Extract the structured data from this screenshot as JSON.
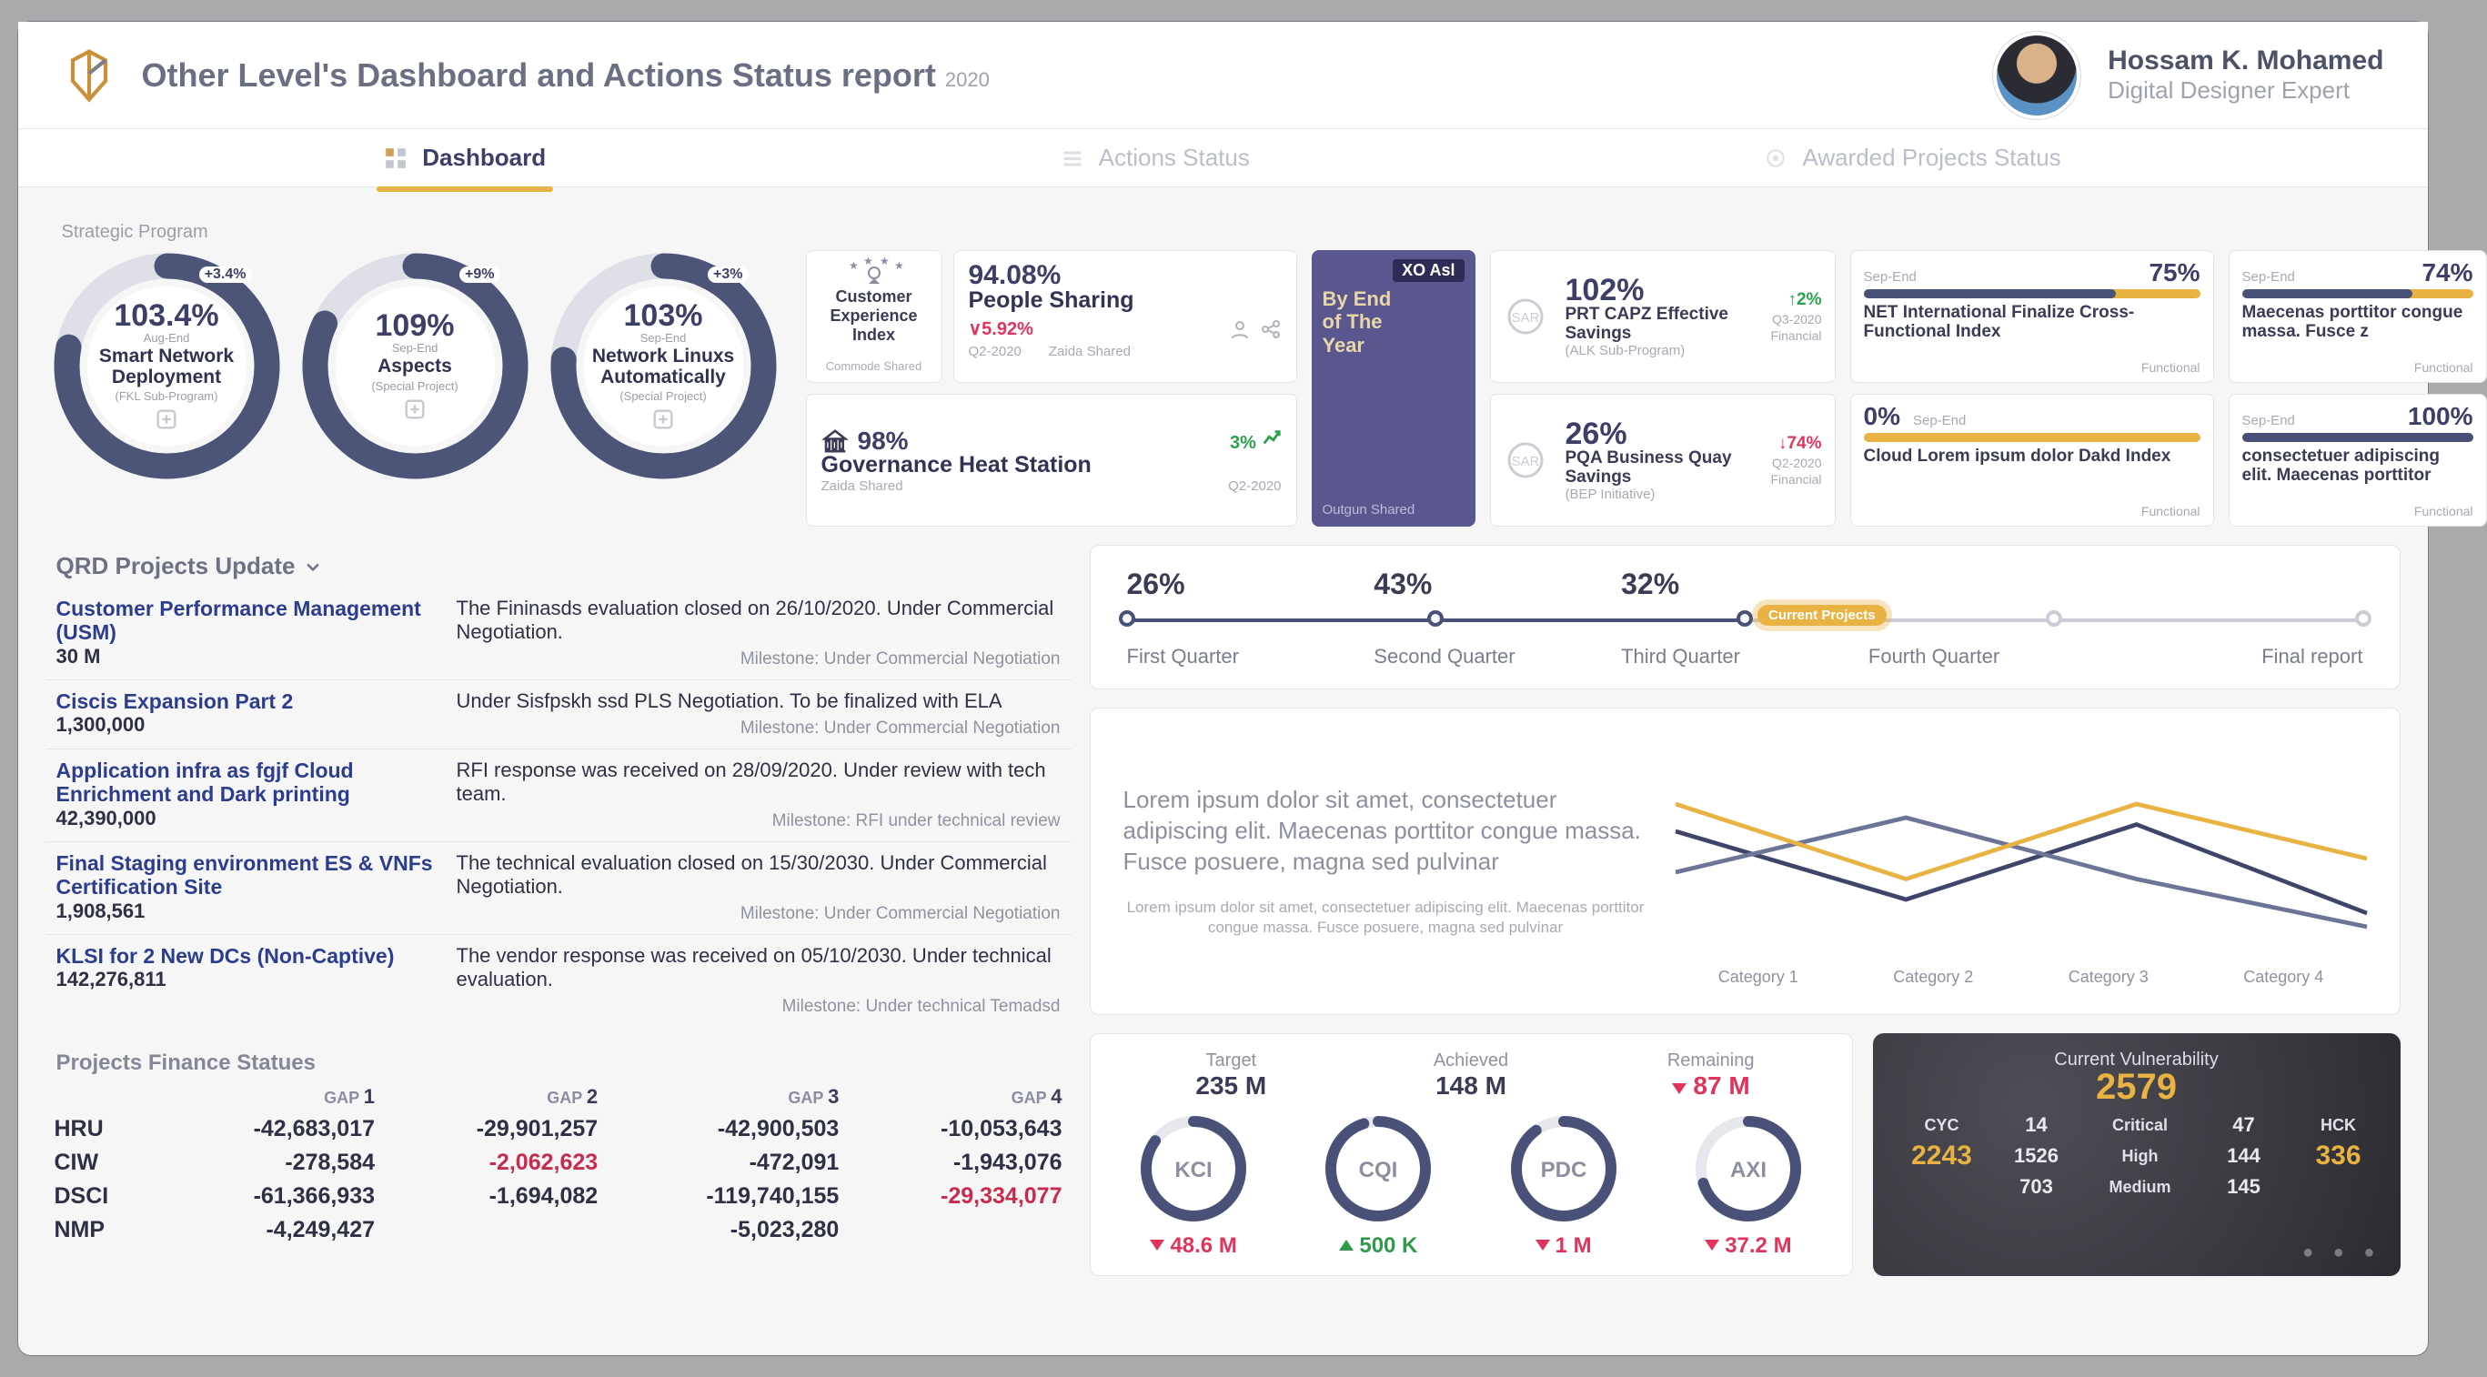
{
  "colors": {
    "ink": "#3a3c55",
    "navy": "#47506c",
    "gold": "#e9b344",
    "green": "#2aa14d",
    "red": "#e0345d",
    "muted": "#a5a8b5",
    "bg": "#f6f6f7",
    "card": "#ffffff",
    "line": "#e4e5ea",
    "ring": "#4c5477",
    "ring_bg": "#dfe0e7",
    "xo_bg": "#5a578e"
  },
  "header": {
    "title": "Other Level's Dashboard and Actions Status report",
    "year": "2020",
    "user_name": "Hossam K. Mohamed",
    "user_role": "Digital Designer Expert"
  },
  "tabs": [
    {
      "label": "Dashboard",
      "active": true
    },
    {
      "label": "Actions Status",
      "active": false
    },
    {
      "label": "Awarded Projects Status",
      "active": false
    }
  ],
  "strategic_label": "Strategic Program",
  "donuts": [
    {
      "pct": "103.4%",
      "period": "Aug-End",
      "name": "Smart Network Deployment",
      "sub": "(FKL Sub-Program)",
      "delta": "+3.4%",
      "fill": 0.78
    },
    {
      "pct": "109%",
      "period": "Sep-End",
      "name": "Aspects",
      "sub": "(Special Project)",
      "delta": "+9%",
      "fill": 0.82
    },
    {
      "pct": "103%",
      "period": "Sep-End",
      "name": "Network Linuxs Automatically",
      "sub": "(Special Project)",
      "delta": "+3%",
      "fill": 0.76
    }
  ],
  "cx": {
    "label": "Customer Experience Index",
    "shared": "Commode Shared"
  },
  "people_sharing": {
    "big": "94.08%",
    "name": "People Sharing",
    "delta": "5.92%",
    "delta_dir": "down",
    "period": "Q2-2020",
    "by": "Zaida Shared"
  },
  "governance": {
    "big": "98%",
    "name": "Governance Heat Station",
    "delta": "3%",
    "delta_dir": "up",
    "by": "Zaida Shared",
    "period": "Q2-2020"
  },
  "xo": {
    "tag": "XO Asl",
    "l1": "By End",
    "l2": "of The",
    "l3": "Year",
    "sub": "Outgun Shared"
  },
  "fin": [
    {
      "big": "102%",
      "delta": "2%",
      "dir": "up",
      "period": "Q3-2020",
      "name": "PRT CAPZ Effective Savings",
      "sub": "(ALK Sub-Program)",
      "tag": "Financial"
    },
    {
      "big": "26%",
      "delta": "74%",
      "dir": "down",
      "period": "Q2-2020",
      "name": "PQA Business Quay Savings",
      "sub": "(BEP Initiative)",
      "tag": "Financial"
    }
  ],
  "bars": [
    {
      "period": "Sep-End",
      "pct": "75%",
      "fill": 75,
      "name": "NET International Finalize Cross-Functional Index",
      "tag": "Functional"
    },
    {
      "period": "Sep-End",
      "pct": "0%",
      "fill": 0,
      "name": "Cloud Lorem ipsum dolor Dakd Index",
      "tag": "Functional",
      "pct_before": true
    },
    {
      "period": "Sep-End",
      "pct": "74%",
      "fill": 74,
      "name": "Maecenas porttitor congue massa. Fusce z",
      "tag": "Functional"
    },
    {
      "period": "Sep-End",
      "pct": "100%",
      "fill": 100,
      "name": "consectetuer adipiscing elit. Maecenas porttitor",
      "tag": "Functional"
    }
  ],
  "qrd_title": "QRD Projects Update",
  "qrd": [
    {
      "name": "Customer Performance Management (USM)",
      "value": "30 M",
      "desc": "The Fininasds evaluation closed on 26/10/2020. Under Commercial Negotiation.",
      "mile": "Milestone: Under Commercial Negotiation"
    },
    {
      "name": "Ciscis Expansion Part 2",
      "value": "1,300,000",
      "desc": "Under Sisfpskh ssd PLS Negotiation. To be finalized with ELA",
      "mile": "Milestone: Under Commercial Negotiation"
    },
    {
      "name": "Application infra as fgjf Cloud Enrichment and Dark printing",
      "value": "42,390,000",
      "desc": "RFI response was received on 28/09/2020. Under review with tech team.",
      "mile": "Milestone: RFI under technical review"
    },
    {
      "name": "Final Staging environment ES & VNFs Certification Site",
      "value": "1,908,561",
      "desc": "The technical evaluation closed on 15/30/2030. Under Commercial Negotiation.",
      "mile": "Milestone: Under Commercial Negotiation"
    },
    {
      "name": "KLSI for 2 New DCs (Non-Captive)",
      "value": "142,276,811",
      "desc": "The vendor response was received on 05/10/2030. Under technical evaluation.",
      "mile": "Milestone: Under technical Temadsd"
    }
  ],
  "fin_header": "Projects Finance Statues",
  "fin_cols": [
    "GAP 1",
    "GAP 2",
    "GAP 3",
    "GAP 4"
  ],
  "fin_rows": [
    {
      "label": "HRU",
      "v": [
        "-42,683,017",
        "-29,901,257",
        "-42,900,503",
        "-10,053,643"
      ],
      "red": []
    },
    {
      "label": "CIW",
      "v": [
        "-278,584",
        "-2,062,623",
        "-472,091",
        "-1,943,076"
      ],
      "red": [
        1
      ]
    },
    {
      "label": "DSCI",
      "v": [
        "-61,366,933",
        "-1,694,082",
        "-119,740,155",
        "-29,334,077"
      ],
      "red": [
        3
      ]
    },
    {
      "label": "NMP",
      "v": [
        "-4,249,427",
        "",
        "-5,023,280",
        ""
      ],
      "red": []
    }
  ],
  "timeline": {
    "values": [
      "26%",
      "43%",
      "32%",
      "",
      ""
    ],
    "labels": [
      "First Quarter",
      "Second Quarter",
      "Third Quarter",
      "Fourth Quarter",
      "Final report"
    ],
    "done_ratio": 0.5,
    "pill": "Current Projects",
    "pill_pos": 0.5,
    "dots": [
      0,
      0.25,
      0.5,
      0.75,
      1.0
    ],
    "future_from": 3
  },
  "lorem": {
    "big": "Lorem ipsum dolor sit amet, consectetuer adipiscing elit. Maecenas porttitor congue massa. Fusce posuere, magna sed pulvinar",
    "small": "Lorem ipsum dolor sit amet, consectetuer adipiscing elit. Maecenas porttitor congue massa. Fusce posuere, magna sed pulvinar",
    "categories": [
      "Category 1",
      "Category 2",
      "Category 3",
      "Category 4"
    ],
    "chart": {
      "series": [
        {
          "color": "#3e4568",
          "width": 4,
          "points": [
            [
              0,
              90
            ],
            [
              1,
              40
            ],
            [
              2,
              95
            ],
            [
              3,
              30
            ]
          ]
        },
        {
          "color": "#6d7596",
          "width": 4,
          "points": [
            [
              0,
              60
            ],
            [
              1,
              100
            ],
            [
              2,
              55
            ],
            [
              3,
              20
            ]
          ]
        },
        {
          "color": "#e9b344",
          "width": 4,
          "points": [
            [
              0,
              110
            ],
            [
              1,
              55
            ],
            [
              2,
              110
            ],
            [
              3,
              70
            ]
          ]
        }
      ],
      "y_range": [
        0,
        160
      ]
    }
  },
  "targets": {
    "labels": [
      "Target",
      "Achieved",
      "Remaining"
    ],
    "values": [
      "235 M",
      "148 M",
      "87 M"
    ],
    "remaining_dir": "down"
  },
  "gauges": [
    {
      "label": "KCI",
      "fill": 0.85,
      "value": "48.6 M",
      "dir": "down"
    },
    {
      "label": "CQI",
      "fill": 0.95,
      "value": "500 K",
      "dir": "up"
    },
    {
      "label": "PDC",
      "fill": 0.9,
      "value": "1 M",
      "dir": "down"
    },
    {
      "label": "AXI",
      "fill": 0.7,
      "value": "37.2 M",
      "dir": "down"
    }
  ],
  "vuln": {
    "title": "Current Vulnerability",
    "total": "2579",
    "left_label": "CYC",
    "left_val": "2243",
    "right_label": "HCK",
    "right_val": "336",
    "rows": [
      {
        "l": "14",
        "mid": "Critical",
        "r": "47"
      },
      {
        "l": "1526",
        "mid": "High",
        "r": "144"
      },
      {
        "l": "703",
        "mid": "Medium",
        "r": "145"
      }
    ]
  }
}
